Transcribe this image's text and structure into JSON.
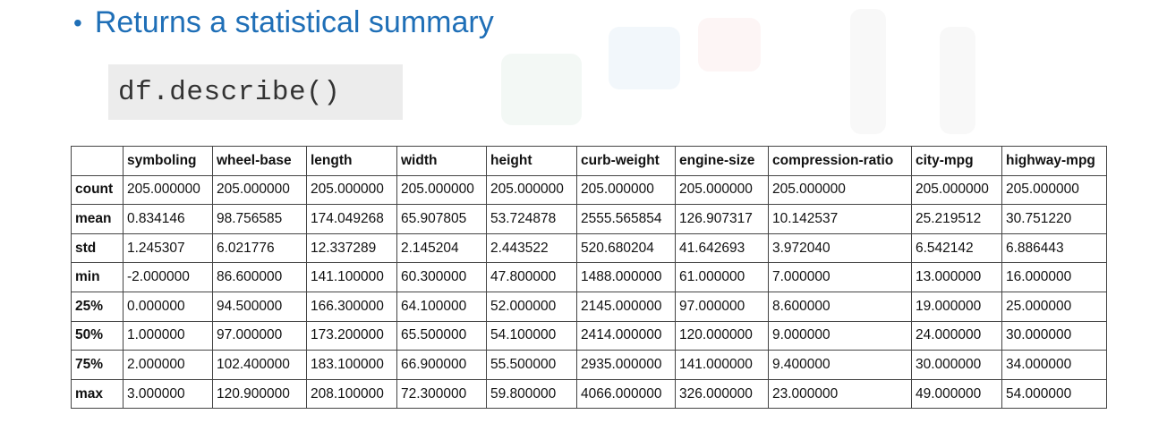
{
  "slide": {
    "bullet": "•",
    "title": "Returns a statistical summary",
    "code": "df.describe()"
  },
  "table": {
    "corner": "",
    "columns": [
      "symboling",
      "wheel-base",
      "length",
      "width",
      "height",
      "curb-weight",
      "engine-size",
      "compression-ratio",
      "city-mpg",
      "highway-mpg"
    ],
    "rows": [
      {
        "label": "count",
        "values": [
          "205.000000",
          "205.000000",
          "205.000000",
          "205.000000",
          "205.000000",
          "205.000000",
          "205.000000",
          "205.000000",
          "205.000000",
          "205.000000"
        ]
      },
      {
        "label": "mean",
        "values": [
          "0.834146",
          "98.756585",
          "174.049268",
          "65.907805",
          "53.724878",
          "2555.565854",
          "126.907317",
          "10.142537",
          "25.219512",
          "30.751220"
        ]
      },
      {
        "label": "std",
        "values": [
          "1.245307",
          "6.021776",
          "12.337289",
          "2.145204",
          "2.443522",
          "520.680204",
          "41.642693",
          "3.972040",
          "6.542142",
          "6.886443"
        ]
      },
      {
        "label": "min",
        "values": [
          "-2.000000",
          "86.600000",
          "141.100000",
          "60.300000",
          "47.800000",
          "1488.000000",
          "61.000000",
          "7.000000",
          "13.000000",
          "16.000000"
        ]
      },
      {
        "label": "25%",
        "values": [
          "0.000000",
          "94.500000",
          "166.300000",
          "64.100000",
          "52.000000",
          "2145.000000",
          "97.000000",
          "8.600000",
          "19.000000",
          "25.000000"
        ]
      },
      {
        "label": "50%",
        "values": [
          "1.000000",
          "97.000000",
          "173.200000",
          "65.500000",
          "54.100000",
          "2414.000000",
          "120.000000",
          "9.000000",
          "24.000000",
          "30.000000"
        ]
      },
      {
        "label": "75%",
        "values": [
          "2.000000",
          "102.400000",
          "183.100000",
          "66.900000",
          "55.500000",
          "2935.000000",
          "141.000000",
          "9.400000",
          "30.000000",
          "34.000000"
        ]
      },
      {
        "label": "max",
        "values": [
          "3.000000",
          "120.900000",
          "208.100000",
          "72.300000",
          "59.800000",
          "4066.000000",
          "326.000000",
          "23.000000",
          "49.000000",
          "54.000000"
        ]
      }
    ]
  },
  "colors": {
    "title": "#1f6fb7",
    "code_bg": "#ececec",
    "border": "#444444"
  }
}
